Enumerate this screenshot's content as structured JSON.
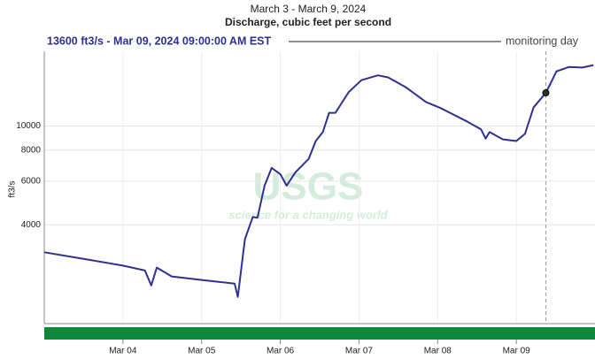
{
  "chart_data": {
    "type": "line",
    "title": "Discharge, cubic feet per second",
    "subtitle": "March 3 - March 9, 2024",
    "y_label": "ft3/s",
    "annotation": "monitoring day",
    "watermark": {
      "logo": "USGS",
      "tagline": "science for a changing world"
    },
    "cursor": {
      "x": 9.375,
      "y": 13600,
      "label": "13600 ft3/s - Mar 09, 2024 09:00:00 AM EST"
    },
    "log_y": true,
    "grid": true,
    "xlim": [
      3,
      10
    ],
    "ylim": [
      1600,
      20000
    ],
    "xticks": [
      {
        "value": 4,
        "label": "Mar 04"
      },
      {
        "value": 5,
        "label": "Mar 05"
      },
      {
        "value": 6,
        "label": "Mar 06"
      },
      {
        "value": 7,
        "label": "Mar 07"
      },
      {
        "value": 8,
        "label": "Mar 08"
      },
      {
        "value": 9,
        "label": "Mar 09"
      }
    ],
    "yticks": [
      4000,
      6000,
      8000,
      10000
    ],
    "series": [
      {
        "name": "Discharge",
        "color": "#2e3192",
        "x": [
          3.0,
          3.55,
          4.0,
          4.28,
          4.36,
          4.43,
          4.62,
          5.0,
          5.42,
          5.46,
          5.55,
          5.65,
          5.71,
          5.8,
          5.89,
          6.0,
          6.08,
          6.19,
          6.36,
          6.45,
          6.54,
          6.62,
          6.7,
          6.87,
          7.03,
          7.24,
          7.37,
          7.6,
          7.85,
          8.04,
          8.38,
          8.55,
          8.61,
          8.66,
          8.83,
          9.0,
          9.11,
          9.22,
          9.375,
          9.51,
          9.67,
          9.84,
          9.98
        ],
        "values": [
          3100,
          2900,
          2740,
          2620,
          2280,
          2690,
          2480,
          2400,
          2320,
          2050,
          3500,
          4300,
          4270,
          5750,
          6780,
          6400,
          5750,
          6500,
          7370,
          8700,
          9450,
          11300,
          11300,
          13700,
          15300,
          16000,
          15700,
          14300,
          12500,
          11800,
          10400,
          9700,
          8900,
          9450,
          8840,
          8700,
          9300,
          11900,
          13600,
          16600,
          17300,
          17200,
          17600
        ]
      }
    ]
  }
}
